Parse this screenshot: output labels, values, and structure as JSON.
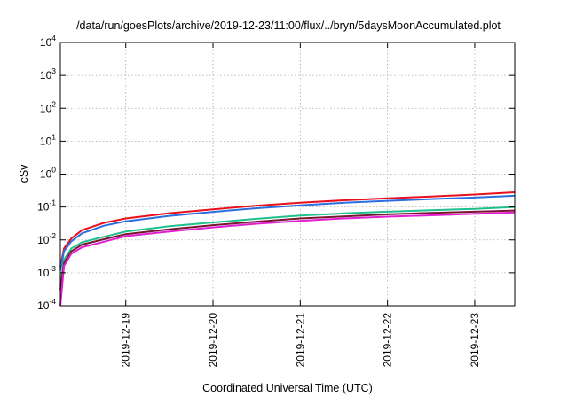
{
  "chart_data": {
    "type": "line",
    "title": "/data/run/goesPlots/archive/2019-12-23/11:00/flux/../bryn/5daysMoonAccumulated.plot",
    "xlabel": "Coordinated Universal Time (UTC)",
    "ylabel": "cSv",
    "y_scale": "log",
    "ylim": [
      0.0001,
      10000
    ],
    "xlim": [
      "2019-12-18 06:00",
      "2019-12-23 11:00"
    ],
    "x_ticks": [
      "2019-12-19",
      "2019-12-20",
      "2019-12-21",
      "2019-12-22",
      "2019-12-23"
    ],
    "y_ticks": [
      {
        "base": "10",
        "exp": "-4"
      },
      {
        "base": "10",
        "exp": "-3"
      },
      {
        "base": "10",
        "exp": "-2"
      },
      {
        "base": "10",
        "exp": "-1"
      },
      {
        "base": "10",
        "exp": "0"
      },
      {
        "base": "10",
        "exp": "1"
      },
      {
        "base": "10",
        "exp": "2"
      },
      {
        "base": "10",
        "exp": "3"
      },
      {
        "base": "10",
        "exp": "4"
      }
    ],
    "grid": true,
    "legend": "none",
    "series": [
      {
        "color": "#e8101c",
        "x": [
          "2019-12-18 06:00",
          "2019-12-18 07:00",
          "2019-12-18 09:00",
          "2019-12-18 12:00",
          "2019-12-18 18:00",
          "2019-12-19 00:00",
          "2019-12-19 12:00",
          "2019-12-20 00:00",
          "2019-12-20 12:00",
          "2019-12-21 00:00",
          "2019-12-21 12:00",
          "2019-12-22 00:00",
          "2019-12-22 12:00",
          "2019-12-23 00:00",
          "2019-12-23 11:00"
        ],
        "values": [
          0.0015,
          0.0055,
          0.011,
          0.02,
          0.033,
          0.045,
          0.065,
          0.085,
          0.11,
          0.135,
          0.16,
          0.185,
          0.21,
          0.24,
          0.28
        ]
      },
      {
        "color": "#2a6fe0",
        "x": [
          "2019-12-18 06:00",
          "2019-12-18 07:00",
          "2019-12-18 09:00",
          "2019-12-18 12:00",
          "2019-12-18 18:00",
          "2019-12-19 00:00",
          "2019-12-19 12:00",
          "2019-12-20 00:00",
          "2019-12-20 12:00",
          "2019-12-21 00:00",
          "2019-12-21 12:00",
          "2019-12-22 00:00",
          "2019-12-22 12:00",
          "2019-12-23 00:00",
          "2019-12-23 11:00"
        ],
        "values": [
          0.0012,
          0.0045,
          0.009,
          0.016,
          0.027,
          0.037,
          0.054,
          0.071,
          0.092,
          0.112,
          0.135,
          0.155,
          0.175,
          0.195,
          0.22
        ]
      },
      {
        "color": "#1fbf8f",
        "x": [
          "2019-12-18 06:00",
          "2019-12-18 07:00",
          "2019-12-18 09:00",
          "2019-12-18 12:00",
          "2019-12-18 18:00",
          "2019-12-19 00:00",
          "2019-12-19 12:00",
          "2019-12-20 00:00",
          "2019-12-20 12:00",
          "2019-12-21 00:00",
          "2019-12-21 12:00",
          "2019-12-22 00:00",
          "2019-12-22 12:00",
          "2019-12-23 00:00",
          "2019-12-23 11:00"
        ],
        "values": [
          0.0004,
          0.0025,
          0.0055,
          0.0085,
          0.0125,
          0.018,
          0.026,
          0.034,
          0.044,
          0.055,
          0.064,
          0.072,
          0.08,
          0.088,
          0.1
        ]
      },
      {
        "color": "#7a1530",
        "x": [
          "2019-12-18 06:00",
          "2019-12-18 07:00",
          "2019-12-18 09:00",
          "2019-12-18 12:00",
          "2019-12-18 18:00",
          "2019-12-19 00:00",
          "2019-12-19 12:00",
          "2019-12-20 00:00",
          "2019-12-20 12:00",
          "2019-12-21 00:00",
          "2019-12-21 12:00",
          "2019-12-22 00:00",
          "2019-12-22 12:00",
          "2019-12-23 00:00",
          "2019-12-23 11:00"
        ],
        "values": [
          0.0003,
          0.002,
          0.0045,
          0.0072,
          0.0105,
          0.015,
          0.021,
          0.028,
          0.036,
          0.045,
          0.052,
          0.06,
          0.066,
          0.072,
          0.078
        ]
      },
      {
        "color": "#e020d0",
        "x": [
          "2019-12-18 06:00",
          "2019-12-18 07:00",
          "2019-12-18 09:00",
          "2019-12-18 12:00",
          "2019-12-18 18:00",
          "2019-12-19 00:00",
          "2019-12-19 12:00",
          "2019-12-20 00:00",
          "2019-12-20 12:00",
          "2019-12-21 00:00",
          "2019-12-21 12:00",
          "2019-12-22 00:00",
          "2019-12-22 12:00",
          "2019-12-23 00:00",
          "2019-12-23 11:00"
        ],
        "values": [
          0.0001,
          0.0016,
          0.0038,
          0.006,
          0.0088,
          0.013,
          0.018,
          0.024,
          0.031,
          0.038,
          0.045,
          0.051,
          0.056,
          0.062,
          0.068
        ]
      }
    ]
  }
}
